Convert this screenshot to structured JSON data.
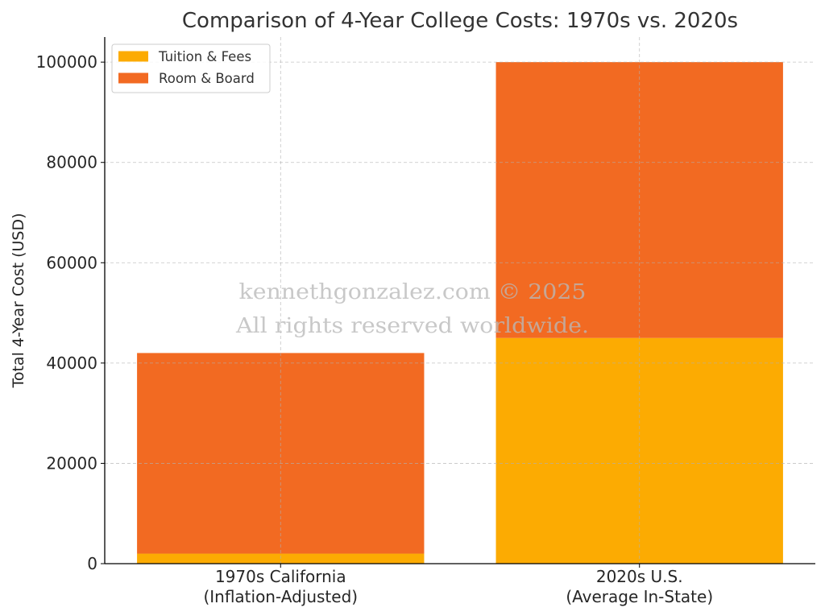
{
  "chart_data": {
    "type": "bar",
    "stacked": true,
    "title": "Comparison of 4-Year College Costs: 1970s vs. 2020s",
    "xlabel": "",
    "ylabel": "Total 4-Year Cost (USD)",
    "categories": [
      "1970s California\n(Inflation-Adjusted)",
      "2020s U.S.\n(Average In-State)"
    ],
    "series": [
      {
        "name": "Tuition & Fees",
        "values": [
          2000,
          45000
        ],
        "color": "#FCAB02"
      },
      {
        "name": "Room & Board",
        "values": [
          40000,
          55000
        ],
        "color": "#F26A22"
      }
    ],
    "ylim": [
      0,
      105000
    ],
    "yticks": [
      0,
      20000,
      40000,
      60000,
      80000,
      100000
    ],
    "grid": true,
    "legend": "top-left"
  },
  "watermark": {
    "line1": "kennethgonzalez.com © 2025",
    "line2": "All rights reserved worldwide."
  }
}
